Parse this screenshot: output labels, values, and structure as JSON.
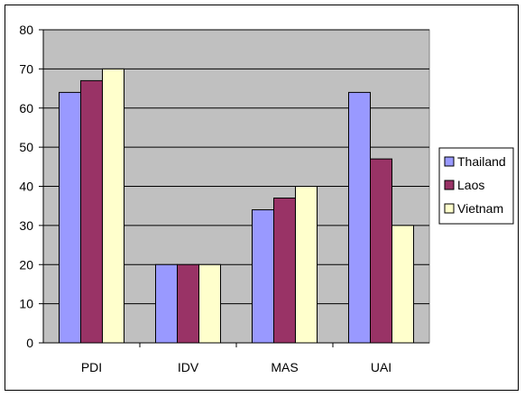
{
  "chart_data": {
    "type": "bar",
    "categories": [
      "PDI",
      "IDV",
      "MAS",
      "UAI"
    ],
    "series": [
      {
        "name": "Thailand",
        "values": [
          64,
          20,
          34,
          64
        ],
        "color": "#9999FF"
      },
      {
        "name": "Laos",
        "values": [
          67,
          20,
          37,
          47
        ],
        "color": "#993366"
      },
      {
        "name": "Vietnam",
        "values": [
          70,
          20,
          40,
          30
        ],
        "color": "#FFFFCC"
      }
    ],
    "ylim": [
      0,
      80
    ],
    "yticks": [
      0,
      10,
      20,
      30,
      40,
      50,
      60,
      70,
      80
    ],
    "title": "",
    "xlabel": "",
    "ylabel": "",
    "grid": true,
    "plot_background": "#C0C0C0",
    "legend_position": "right"
  }
}
